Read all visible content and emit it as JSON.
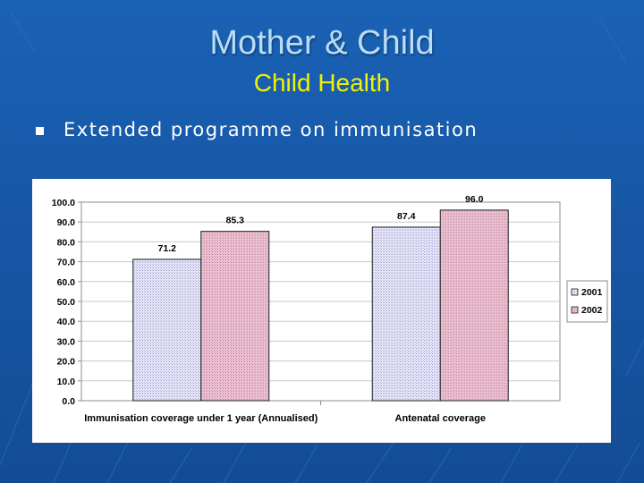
{
  "slide": {
    "title": "Mother & Child",
    "subtitle": "Child Health",
    "bullet": "Extended programme on immunisation"
  },
  "colors": {
    "background": "#1757a6",
    "title": "#b9dcf7",
    "subtitle": "#f2f200",
    "series_2001": "#dcdcf2",
    "series_2002": "#e3b4c8"
  },
  "chart_data": {
    "type": "bar",
    "title": "",
    "xlabel": "",
    "ylabel": "",
    "ylim": [
      0,
      100
    ],
    "yticks": [
      "0.0",
      "10.0",
      "20.0",
      "30.0",
      "40.0",
      "50.0",
      "60.0",
      "70.0",
      "80.0",
      "90.0",
      "100.0"
    ],
    "categories": [
      "Immunisation coverage under 1 year (Annualised)",
      "Antenatal coverage"
    ],
    "series": [
      {
        "name": "2001",
        "values": [
          71.2,
          87.4
        ],
        "labels": [
          "71.2",
          "87.4"
        ]
      },
      {
        "name": "2002",
        "values": [
          85.3,
          96.0
        ],
        "labels": [
          "85.3",
          "96.0"
        ]
      }
    ],
    "legend": "right",
    "grid": true
  }
}
